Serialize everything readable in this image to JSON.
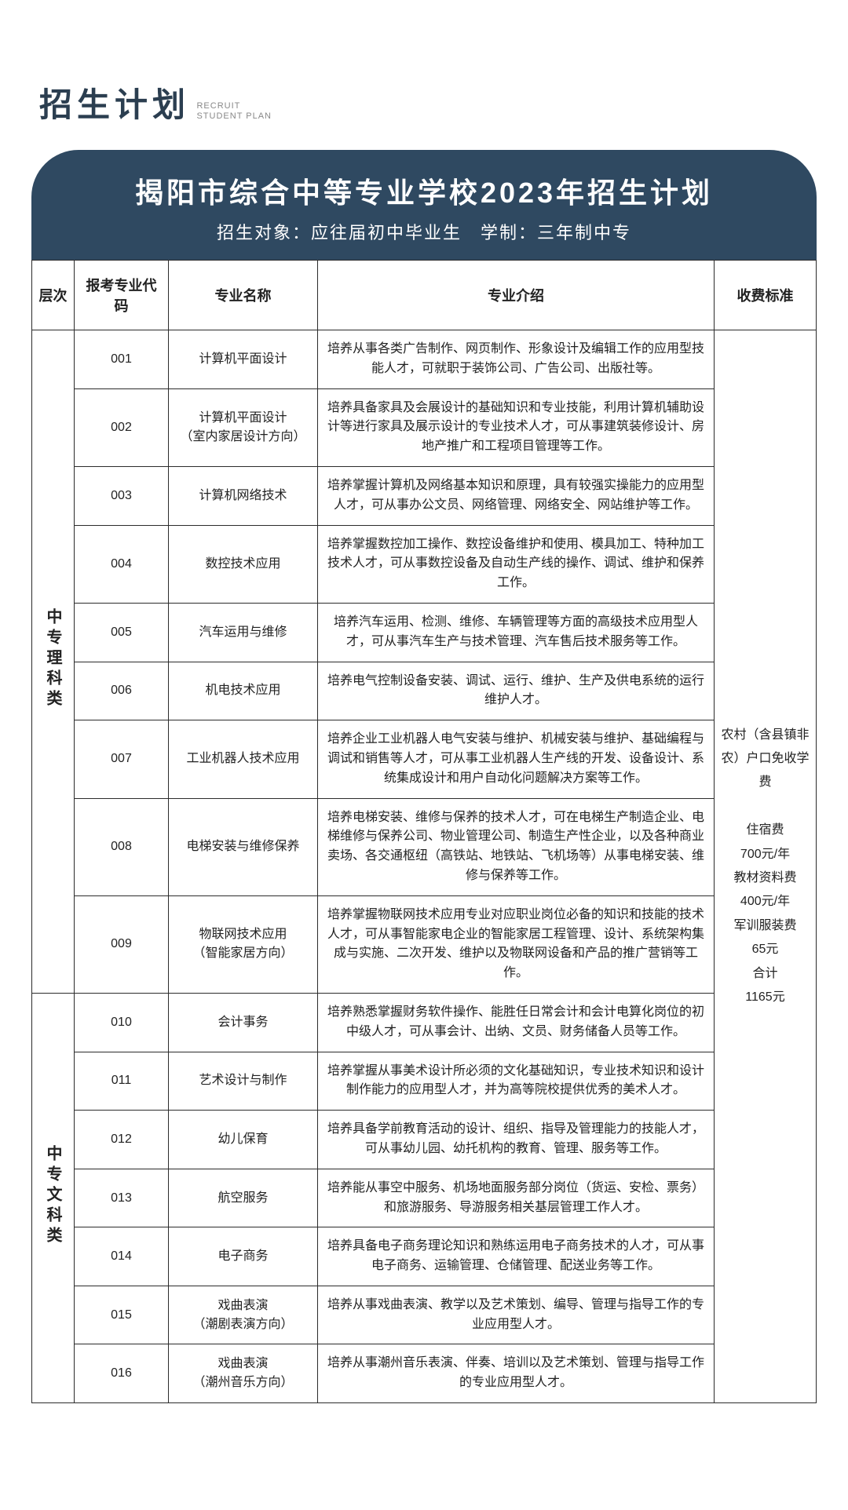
{
  "page_header": {
    "main": "招生计划",
    "sub_top": "RECRUIT",
    "sub_bottom": "STUDENT PLAN"
  },
  "banner": {
    "title": "揭阳市综合中等专业学校2023年招生计划",
    "subtitle": "招生对象：应往届初中毕业生　学制：三年制中专",
    "bg_color": "#2f4961",
    "text_color": "#ffffff"
  },
  "columns": {
    "level": "层次",
    "code": "报考专业代码",
    "name": "专业名称",
    "desc": "专业介绍",
    "fee": "收费标准"
  },
  "groups": [
    {
      "level": "中专理科类",
      "rows": [
        {
          "code": "001",
          "name": "计算机平面设计",
          "desc": "培养从事各类广告制作、网页制作、形象设计及编辑工作的应用型技能人才，可就职于装饰公司、广告公司、出版社等。"
        },
        {
          "code": "002",
          "name": "计算机平面设计\n（室内家居设计方向）",
          "desc": "培养具备家具及会展设计的基础知识和专业技能，利用计算机辅助设计等进行家具及展示设计的专业技术人才，可从事建筑装修设计、房地产推广和工程项目管理等工作。"
        },
        {
          "code": "003",
          "name": "计算机网络技术",
          "desc": "培养掌握计算机及网络基本知识和原理，具有较强实操能力的应用型人才，可从事办公文员、网络管理、网络安全、网站维护等工作。"
        },
        {
          "code": "004",
          "name": "数控技术应用",
          "desc": "培养掌握数控加工操作、数控设备维护和使用、模具加工、特种加工技术人才，可从事数控设备及自动生产线的操作、调试、维护和保养工作。"
        },
        {
          "code": "005",
          "name": "汽车运用与维修",
          "desc": "培养汽车运用、检测、维修、车辆管理等方面的高级技术应用型人才，可从事汽车生产与技术管理、汽车售后技术服务等工作。"
        },
        {
          "code": "006",
          "name": "机电技术应用",
          "desc": "培养电气控制设备安装、调试、运行、维护、生产及供电系统的运行维护人才。"
        },
        {
          "code": "007",
          "name": "工业机器人技术应用",
          "desc": "培养企业工业机器人电气安装与维护、机械安装与维护、基础编程与调试和销售等人才，可从事工业机器人生产线的开发、设备设计、系统集成设计和用户自动化问题解决方案等工作。"
        },
        {
          "code": "008",
          "name": "电梯安装与维修保养",
          "desc": "培养电梯安装、维修与保养的技术人才，可在电梯生产制造企业、电梯维修与保养公司、物业管理公司、制造生产性企业，以及各种商业卖场、各交通枢纽（高铁站、地铁站、飞机场等）从事电梯安装、维修与保养等工作。"
        },
        {
          "code": "009",
          "name": "物联网技术应用\n（智能家居方向）",
          "desc": "培养掌握物联网技术应用专业对应职业岗位必备的知识和技能的技术人才，可从事智能家电企业的智能家居工程管理、设计、系统架构集成与实施、二次开发、维护以及物联网设备和产品的推广营销等工作。"
        }
      ]
    },
    {
      "level": "中专文科类",
      "rows": [
        {
          "code": "010",
          "name": "会计事务",
          "desc": "培养熟悉掌握财务软件操作、能胜任日常会计和会计电算化岗位的初中级人才，可从事会计、出纳、文员、财务储备人员等工作。"
        },
        {
          "code": "011",
          "name": "艺术设计与制作",
          "desc": "培养掌握从事美术设计所必须的文化基础知识，专业技术知识和设计制作能力的应用型人才，并为高等院校提供优秀的美术人才。"
        },
        {
          "code": "012",
          "name": "幼儿保育",
          "desc": "培养具备学前教育活动的设计、组织、指导及管理能力的技能人才，可从事幼儿园、幼托机构的教育、管理、服务等工作。"
        },
        {
          "code": "013",
          "name": "航空服务",
          "desc": "培养能从事空中服务、机场地面服务部分岗位（货运、安检、票务）和旅游服务、导游服务相关基层管理工作人才。"
        },
        {
          "code": "014",
          "name": "电子商务",
          "desc": "培养具备电子商务理论知识和熟练运用电子商务技术的人才，可从事电子商务、运输管理、仓储管理、配送业务等工作。"
        },
        {
          "code": "015",
          "name": "戏曲表演\n（潮剧表演方向）",
          "desc": "培养从事戏曲表演、教学以及艺术策划、编导、管理与指导工作的专业应用型人才。"
        },
        {
          "code": "016",
          "name": "戏曲表演\n（潮州音乐方向）",
          "desc": "培养从事潮州音乐表演、伴奏、培训以及艺术策划、管理与指导工作的专业应用型人才。"
        }
      ]
    }
  ],
  "fee": {
    "line1": "农村（含县镇非农）户口免收学费",
    "line2": "住宿费",
    "line3": "700元/年",
    "line4": "教材资料费",
    "line5": "400元/年",
    "line6": "军训服装费",
    "line7": "65元",
    "line8": "合计",
    "line9": "1165元"
  },
  "style": {
    "border_color": "#2b2b2b",
    "header_bg": "#ffffff"
  }
}
